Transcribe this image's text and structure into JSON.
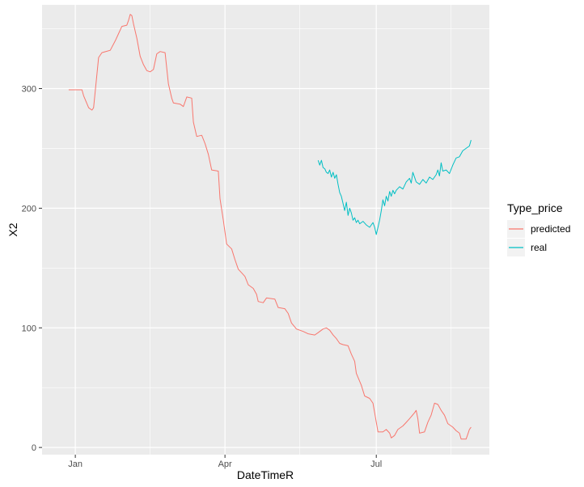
{
  "chart_data": {
    "type": "line",
    "title": "",
    "xlabel": "DateTimeR",
    "ylabel": "X2",
    "x_ticks": [
      "Jan",
      "Apr",
      "Jul"
    ],
    "y_ticks": [
      0,
      100,
      200,
      300
    ],
    "ylim": [
      -6,
      370
    ],
    "grid": true,
    "legend": {
      "title": "Type_price",
      "position": "right"
    },
    "colors": {
      "panel": "#ebebeb",
      "grid": "#ffffff",
      "predicted": "#f8766d",
      "real": "#00bfc4"
    },
    "series": [
      {
        "name": "predicted",
        "color": "#f8766d",
        "points": [
          [
            "2020-12-28",
            299
          ],
          [
            "2021-01-05",
            299
          ],
          [
            "2021-01-06",
            294
          ],
          [
            "2021-01-09",
            284
          ],
          [
            "2021-01-11",
            282
          ],
          [
            "2021-01-12",
            284
          ],
          [
            "2021-01-15",
            326
          ],
          [
            "2021-01-17",
            330
          ],
          [
            "2021-01-22",
            332
          ],
          [
            "2021-01-25",
            340
          ],
          [
            "2021-01-27",
            346
          ],
          [
            "2021-01-29",
            352
          ],
          [
            "2021-02-01",
            353
          ],
          [
            "2021-02-02",
            357
          ],
          [
            "2021-02-03",
            362
          ],
          [
            "2021-02-04",
            361
          ],
          [
            "2021-02-05",
            354
          ],
          [
            "2021-02-07",
            342
          ],
          [
            "2021-02-09",
            327
          ],
          [
            "2021-02-11",
            320
          ],
          [
            "2021-02-13",
            315
          ],
          [
            "2021-02-15",
            314
          ],
          [
            "2021-02-17",
            316
          ],
          [
            "2021-02-19",
            329
          ],
          [
            "2021-02-21",
            331
          ],
          [
            "2021-02-24",
            330
          ],
          [
            "2021-02-26",
            304
          ],
          [
            "2021-02-28",
            292
          ],
          [
            "2021-03-01",
            288
          ],
          [
            "2021-03-05",
            287
          ],
          [
            "2021-03-07",
            285
          ],
          [
            "2021-03-09",
            293
          ],
          [
            "2021-03-12",
            292
          ],
          [
            "2021-03-13",
            272
          ],
          [
            "2021-03-15",
            260
          ],
          [
            "2021-03-18",
            261
          ],
          [
            "2021-03-20",
            254
          ],
          [
            "2021-03-22",
            245
          ],
          [
            "2021-03-24",
            232
          ],
          [
            "2021-03-28",
            231
          ],
          [
            "2021-03-29",
            208
          ],
          [
            "2021-03-31",
            190
          ],
          [
            "2021-04-02",
            170
          ],
          [
            "2021-04-05",
            166
          ],
          [
            "2021-04-07",
            157
          ],
          [
            "2021-04-09",
            149
          ],
          [
            "2021-04-11",
            146
          ],
          [
            "2021-04-13",
            143
          ],
          [
            "2021-04-15",
            136
          ],
          [
            "2021-04-18",
            133
          ],
          [
            "2021-04-20",
            128
          ],
          [
            "2021-04-21",
            122
          ],
          [
            "2021-04-24",
            121
          ],
          [
            "2021-04-26",
            125
          ],
          [
            "2021-05-01",
            124
          ],
          [
            "2021-05-03",
            117
          ],
          [
            "2021-05-07",
            116
          ],
          [
            "2021-05-09",
            112
          ],
          [
            "2021-05-11",
            104
          ],
          [
            "2021-05-14",
            99
          ],
          [
            "2021-05-18",
            97
          ],
          [
            "2021-05-21",
            95
          ],
          [
            "2021-05-25",
            94
          ],
          [
            "2021-05-27",
            96
          ],
          [
            "2021-05-30",
            99
          ],
          [
            "2021-06-01",
            100
          ],
          [
            "2021-06-03",
            98
          ],
          [
            "2021-06-05",
            94
          ],
          [
            "2021-06-07",
            91
          ],
          [
            "2021-06-09",
            87
          ],
          [
            "2021-06-11",
            86
          ],
          [
            "2021-06-14",
            85
          ],
          [
            "2021-06-16",
            78
          ],
          [
            "2021-06-18",
            72
          ],
          [
            "2021-06-19",
            62
          ],
          [
            "2021-06-22",
            52
          ],
          [
            "2021-06-24",
            43
          ],
          [
            "2021-06-27",
            41
          ],
          [
            "2021-06-29",
            37
          ],
          [
            "2021-06-30",
            29
          ],
          [
            "2021-07-02",
            13
          ],
          [
            "2021-07-05",
            13
          ],
          [
            "2021-07-07",
            15
          ],
          [
            "2021-07-09",
            12
          ],
          [
            "2021-07-10",
            8
          ],
          [
            "2021-07-12",
            10
          ],
          [
            "2021-07-14",
            15
          ],
          [
            "2021-07-17",
            18
          ],
          [
            "2021-07-19",
            21
          ],
          [
            "2021-07-21",
            24
          ],
          [
            "2021-07-24",
            29
          ],
          [
            "2021-07-25",
            31
          ],
          [
            "2021-07-26",
            24
          ],
          [
            "2021-07-27",
            12
          ],
          [
            "2021-07-30",
            13
          ],
          [
            "2021-08-01",
            21
          ],
          [
            "2021-08-03",
            27
          ],
          [
            "2021-08-05",
            37
          ],
          [
            "2021-08-07",
            36
          ],
          [
            "2021-08-09",
            31
          ],
          [
            "2021-08-11",
            27
          ],
          [
            "2021-08-13",
            20
          ],
          [
            "2021-08-16",
            17
          ],
          [
            "2021-08-18",
            14
          ],
          [
            "2021-08-20",
            12
          ],
          [
            "2021-08-21",
            7
          ],
          [
            "2021-08-24",
            7
          ],
          [
            "2021-08-25",
            11
          ],
          [
            "2021-08-26",
            15
          ],
          [
            "2021-08-27",
            17
          ]
        ]
      },
      {
        "name": "real",
        "color": "#00bfc4",
        "points": [
          [
            "2021-05-27",
            240
          ],
          [
            "2021-05-28",
            236
          ],
          [
            "2021-05-29",
            240
          ],
          [
            "2021-05-30",
            234
          ],
          [
            "2021-05-31",
            233
          ],
          [
            "2021-06-01",
            230
          ],
          [
            "2021-06-02",
            229
          ],
          [
            "2021-06-03",
            232
          ],
          [
            "2021-06-04",
            226
          ],
          [
            "2021-06-05",
            230
          ],
          [
            "2021-06-06",
            225
          ],
          [
            "2021-06-07",
            228
          ],
          [
            "2021-06-08",
            220
          ],
          [
            "2021-06-09",
            213
          ],
          [
            "2021-06-10",
            210
          ],
          [
            "2021-06-11",
            204
          ],
          [
            "2021-06-12",
            198
          ],
          [
            "2021-06-13",
            205
          ],
          [
            "2021-06-14",
            194
          ],
          [
            "2021-06-15",
            200
          ],
          [
            "2021-06-16",
            196
          ],
          [
            "2021-06-17",
            190
          ],
          [
            "2021-06-18",
            192
          ],
          [
            "2021-06-19",
            188
          ],
          [
            "2021-06-20",
            190
          ],
          [
            "2021-06-21",
            187
          ],
          [
            "2021-06-23",
            189
          ],
          [
            "2021-06-25",
            186
          ],
          [
            "2021-06-27",
            184
          ],
          [
            "2021-06-29",
            188
          ],
          [
            "2021-06-30",
            184
          ],
          [
            "2021-07-01",
            178
          ],
          [
            "2021-07-02",
            184
          ],
          [
            "2021-07-03",
            190
          ],
          [
            "2021-07-04",
            198
          ],
          [
            "2021-07-05",
            207
          ],
          [
            "2021-07-06",
            202
          ],
          [
            "2021-07-07",
            210
          ],
          [
            "2021-07-08",
            206
          ],
          [
            "2021-07-09",
            214
          ],
          [
            "2021-07-10",
            210
          ],
          [
            "2021-07-11",
            215
          ],
          [
            "2021-07-12",
            212
          ],
          [
            "2021-07-13",
            215
          ],
          [
            "2021-07-15",
            218
          ],
          [
            "2021-07-17",
            216
          ],
          [
            "2021-07-19",
            222
          ],
          [
            "2021-07-21",
            225
          ],
          [
            "2021-07-22",
            221
          ],
          [
            "2021-07-23",
            230
          ],
          [
            "2021-07-24",
            226
          ],
          [
            "2021-07-25",
            222
          ],
          [
            "2021-07-27",
            220
          ],
          [
            "2021-07-29",
            224
          ],
          [
            "2021-07-31",
            221
          ],
          [
            "2021-08-02",
            226
          ],
          [
            "2021-08-04",
            224
          ],
          [
            "2021-08-06",
            228
          ],
          [
            "2021-08-07",
            232
          ],
          [
            "2021-08-08",
            227
          ],
          [
            "2021-08-09",
            238
          ],
          [
            "2021-08-10",
            231
          ],
          [
            "2021-08-12",
            232
          ],
          [
            "2021-08-14",
            229
          ],
          [
            "2021-08-16",
            236
          ],
          [
            "2021-08-18",
            242
          ],
          [
            "2021-08-20",
            243
          ],
          [
            "2021-08-22",
            248
          ],
          [
            "2021-08-24",
            250
          ],
          [
            "2021-08-26",
            252
          ],
          [
            "2021-08-27",
            257
          ]
        ]
      }
    ]
  }
}
